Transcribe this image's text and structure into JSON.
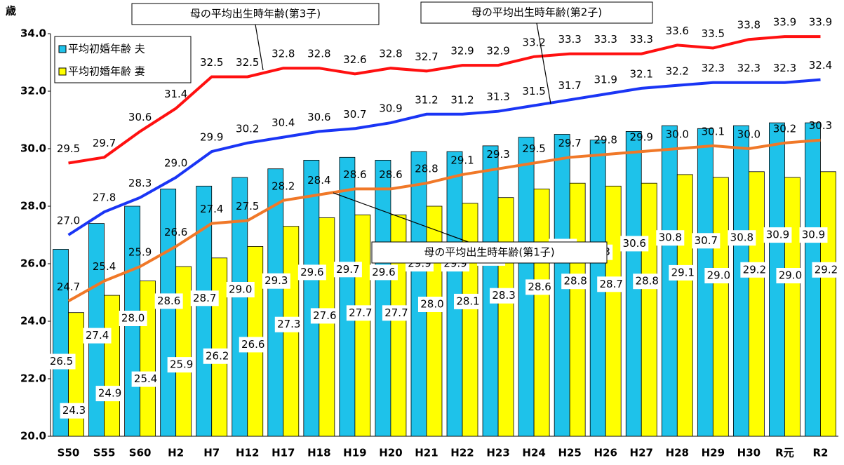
{
  "chart_data": {
    "type": "bar",
    "y_label": "歳",
    "categories": [
      "S50",
      "S55",
      "S60",
      "H2",
      "H7",
      "H12",
      "H17",
      "H18",
      "H19",
      "H20",
      "H21",
      "H22",
      "H23",
      "H24",
      "H25",
      "H26",
      "H27",
      "H28",
      "H29",
      "H30",
      "R元",
      "R2"
    ],
    "ylim": [
      20,
      34
    ],
    "yticks": [
      {
        "value": 20,
        "label": "20.0"
      },
      {
        "value": 22,
        "label": "22.0"
      },
      {
        "value": 24,
        "label": "24.0"
      },
      {
        "value": 26,
        "label": "26.0"
      },
      {
        "value": 28,
        "label": "28.0"
      },
      {
        "value": 30,
        "label": "30.0"
      },
      {
        "value": 32,
        "label": "32.0"
      },
      {
        "value": 34,
        "label": "34.0"
      }
    ],
    "legend": "upper left",
    "series": [
      {
        "name": "平均初婚年齢 夫",
        "type": "bar",
        "color": "#1ec2ea",
        "values": [
          26.5,
          27.4,
          28.0,
          28.6,
          28.7,
          29.0,
          29.3,
          29.6,
          29.7,
          29.6,
          29.9,
          29.9,
          30.1,
          30.4,
          30.5,
          30.3,
          30.6,
          30.8,
          30.7,
          30.8,
          30.9,
          30.9
        ],
        "value_labels": [
          "26.5",
          "27.4",
          "28.0",
          "28.6",
          "28.7",
          "29.0",
          "29.3",
          "29.6",
          "29.7",
          "29.6",
          "29.9",
          "29.9",
          "30.1",
          "30.4",
          "30.5",
          "30.3",
          "30.6",
          "30.8",
          "30.7",
          "30.8",
          "30.9",
          "30.9"
        ]
      },
      {
        "name": "平均初婚年齢 妻",
        "type": "bar",
        "color": "#ffff00",
        "values": [
          24.3,
          24.9,
          25.4,
          25.9,
          26.2,
          26.6,
          27.3,
          27.6,
          27.7,
          27.7,
          28.0,
          28.1,
          28.3,
          28.6,
          28.8,
          28.7,
          28.8,
          29.1,
          29.0,
          29.2,
          29.0,
          29.2
        ],
        "value_labels": [
          "24.3",
          "24.9",
          "25.4",
          "25.9",
          "26.2",
          "26.6",
          "27.3",
          "27.6",
          "27.7",
          "27.7",
          "28.0",
          "28.1",
          "28.3",
          "28.6",
          "28.8",
          "28.7",
          "28.8",
          "29.1",
          "29.0",
          "29.2",
          "29.0",
          "29.2"
        ]
      },
      {
        "name": "母の平均出生時年齢(第1子)",
        "type": "line",
        "color": "#f07828",
        "values": [
          24.7,
          25.4,
          25.9,
          26.6,
          27.4,
          27.5,
          28.2,
          28.4,
          28.6,
          28.6,
          28.8,
          29.1,
          29.3,
          29.5,
          29.7,
          29.8,
          29.9,
          30.0,
          30.1,
          30.0,
          30.2,
          30.3
        ],
        "value_labels": [
          "24.7",
          "25.4",
          "25.9",
          "26.6",
          "27.4",
          "27.5",
          "28.2",
          "28.4",
          "28.6",
          "28.6",
          "28.8",
          "29.1",
          "29.3",
          "29.5",
          "29.7",
          "29.8",
          "29.9",
          "30.0",
          "30.1",
          "30.0",
          "30.2",
          "30.3"
        ]
      },
      {
        "name": "母の平均出生時年齢(第2子)",
        "type": "line",
        "color": "#1a35f5",
        "values": [
          27.0,
          27.8,
          28.3,
          29.0,
          29.9,
          30.2,
          30.4,
          30.6,
          30.7,
          30.9,
          31.2,
          31.2,
          31.3,
          31.5,
          31.7,
          31.9,
          32.1,
          32.2,
          32.3,
          32.3,
          32.3,
          32.4
        ],
        "value_labels": [
          "27.0",
          "27.8",
          "28.3",
          "29.0",
          "29.9",
          "30.2",
          "30.4",
          "30.6",
          "30.7",
          "30.9",
          "31.2",
          "31.2",
          "31.3",
          "31.5",
          "31.7",
          "31.9",
          "32.1",
          "32.2",
          "32.3",
          "32.3",
          "32.3",
          "32.4"
        ]
      },
      {
        "name": "母の平均出生時年齢(第3子)",
        "type": "line",
        "color": "#ff1010",
        "values": [
          29.5,
          29.7,
          30.6,
          31.4,
          32.5,
          32.5,
          32.8,
          32.8,
          32.6,
          32.8,
          32.7,
          32.9,
          32.9,
          33.2,
          33.3,
          33.3,
          33.3,
          33.6,
          33.5,
          33.8,
          33.9,
          33.9
        ],
        "value_labels": [
          "29.5",
          "29.7",
          "30.6",
          "31.4",
          "32.5",
          "32.5",
          "32.8",
          "32.8",
          "32.6",
          "32.8",
          "32.7",
          "32.9",
          "32.9",
          "33.2",
          "33.3",
          "33.3",
          "33.3",
          "33.6",
          "33.5",
          "33.8",
          "33.9",
          "33.9"
        ]
      }
    ]
  }
}
